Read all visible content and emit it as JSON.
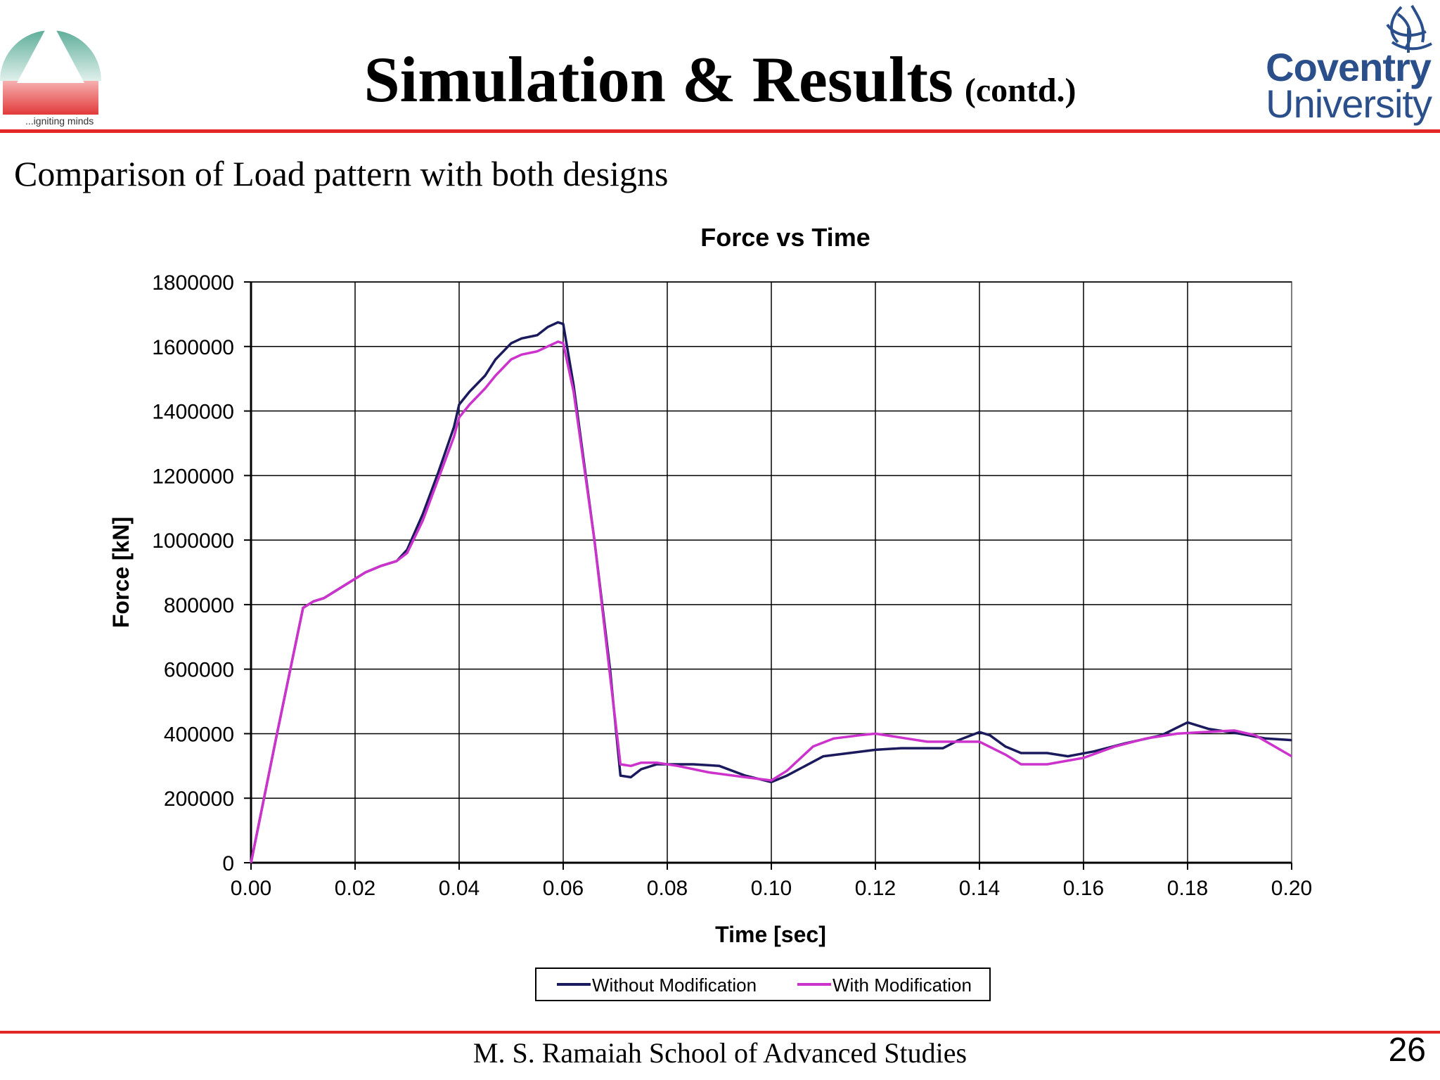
{
  "header": {
    "title": "Simulation & Results",
    "title_suffix": "(contd.)",
    "left_logo": {
      "icon": "triangle-mountain-logo",
      "tagline": "...igniting minds"
    },
    "right_logo": {
      "icon": "phoenix-logo",
      "name_line1": "Coventry",
      "name_line2": "University",
      "color": "#2a4f8a"
    },
    "accent_color": "#e32626"
  },
  "subtitle": "Comparison of Load pattern with both designs",
  "chart_data": {
    "type": "line",
    "title": "Force vs Time",
    "xlabel": "Time [sec]",
    "ylabel": "Force [kN]",
    "xlim": [
      0,
      0.2
    ],
    "ylim": [
      0,
      1800000
    ],
    "xticks": [
      "0.00",
      "0.02",
      "0.04",
      "0.06",
      "0.08",
      "0.10",
      "0.12",
      "0.14",
      "0.16",
      "0.18",
      "0.20"
    ],
    "yticks": [
      "0",
      "200000",
      "400000",
      "600000",
      "800000",
      "1000000",
      "1200000",
      "1400000",
      "1600000",
      "1800000"
    ],
    "grid": true,
    "legend_position": "bottom",
    "series": [
      {
        "name": "Without Modification",
        "color": "#1a1a5c",
        "points": [
          [
            0.0,
            0
          ],
          [
            0.005,
            400000
          ],
          [
            0.01,
            790000
          ],
          [
            0.012,
            810000
          ],
          [
            0.014,
            820000
          ],
          [
            0.018,
            860000
          ],
          [
            0.022,
            900000
          ],
          [
            0.025,
            920000
          ],
          [
            0.028,
            935000
          ],
          [
            0.03,
            970000
          ],
          [
            0.033,
            1080000
          ],
          [
            0.036,
            1210000
          ],
          [
            0.039,
            1350000
          ],
          [
            0.04,
            1420000
          ],
          [
            0.042,
            1460000
          ],
          [
            0.045,
            1510000
          ],
          [
            0.047,
            1560000
          ],
          [
            0.05,
            1610000
          ],
          [
            0.052,
            1625000
          ],
          [
            0.055,
            1635000
          ],
          [
            0.057,
            1660000
          ],
          [
            0.059,
            1675000
          ],
          [
            0.06,
            1670000
          ],
          [
            0.062,
            1480000
          ],
          [
            0.066,
            1000000
          ],
          [
            0.069,
            600000
          ],
          [
            0.071,
            270000
          ],
          [
            0.073,
            265000
          ],
          [
            0.075,
            290000
          ],
          [
            0.078,
            305000
          ],
          [
            0.085,
            305000
          ],
          [
            0.09,
            300000
          ],
          [
            0.095,
            270000
          ],
          [
            0.1,
            250000
          ],
          [
            0.103,
            270000
          ],
          [
            0.11,
            330000
          ],
          [
            0.115,
            340000
          ],
          [
            0.12,
            350000
          ],
          [
            0.125,
            355000
          ],
          [
            0.133,
            355000
          ],
          [
            0.136,
            380000
          ],
          [
            0.14,
            405000
          ],
          [
            0.142,
            395000
          ],
          [
            0.145,
            360000
          ],
          [
            0.148,
            340000
          ],
          [
            0.153,
            340000
          ],
          [
            0.157,
            330000
          ],
          [
            0.162,
            345000
          ],
          [
            0.168,
            370000
          ],
          [
            0.175,
            395000
          ],
          [
            0.18,
            435000
          ],
          [
            0.184,
            415000
          ],
          [
            0.19,
            400000
          ],
          [
            0.195,
            385000
          ],
          [
            0.2,
            380000
          ]
        ]
      },
      {
        "name": "With Modification",
        "color": "#cc33cc",
        "points": [
          [
            0.0,
            0
          ],
          [
            0.005,
            400000
          ],
          [
            0.01,
            790000
          ],
          [
            0.012,
            810000
          ],
          [
            0.014,
            820000
          ],
          [
            0.018,
            860000
          ],
          [
            0.022,
            900000
          ],
          [
            0.025,
            920000
          ],
          [
            0.028,
            935000
          ],
          [
            0.03,
            960000
          ],
          [
            0.033,
            1060000
          ],
          [
            0.036,
            1190000
          ],
          [
            0.039,
            1320000
          ],
          [
            0.04,
            1380000
          ],
          [
            0.042,
            1420000
          ],
          [
            0.045,
            1470000
          ],
          [
            0.047,
            1510000
          ],
          [
            0.05,
            1560000
          ],
          [
            0.052,
            1575000
          ],
          [
            0.055,
            1585000
          ],
          [
            0.057,
            1600000
          ],
          [
            0.059,
            1615000
          ],
          [
            0.06,
            1610000
          ],
          [
            0.062,
            1460000
          ],
          [
            0.066,
            1000000
          ],
          [
            0.069,
            580000
          ],
          [
            0.071,
            305000
          ],
          [
            0.073,
            300000
          ],
          [
            0.075,
            310000
          ],
          [
            0.078,
            310000
          ],
          [
            0.082,
            300000
          ],
          [
            0.088,
            280000
          ],
          [
            0.095,
            265000
          ],
          [
            0.1,
            255000
          ],
          [
            0.103,
            285000
          ],
          [
            0.108,
            360000
          ],
          [
            0.112,
            385000
          ],
          [
            0.117,
            395000
          ],
          [
            0.12,
            400000
          ],
          [
            0.126,
            385000
          ],
          [
            0.13,
            375000
          ],
          [
            0.135,
            375000
          ],
          [
            0.14,
            375000
          ],
          [
            0.145,
            335000
          ],
          [
            0.148,
            305000
          ],
          [
            0.153,
            305000
          ],
          [
            0.16,
            325000
          ],
          [
            0.166,
            360000
          ],
          [
            0.172,
            385000
          ],
          [
            0.178,
            400000
          ],
          [
            0.183,
            405000
          ],
          [
            0.189,
            410000
          ],
          [
            0.193,
            395000
          ],
          [
            0.2,
            330000
          ]
        ]
      }
    ]
  },
  "footer": {
    "text": "M. S. Ramaiah School of Advanced Studies",
    "page_number": "26"
  }
}
